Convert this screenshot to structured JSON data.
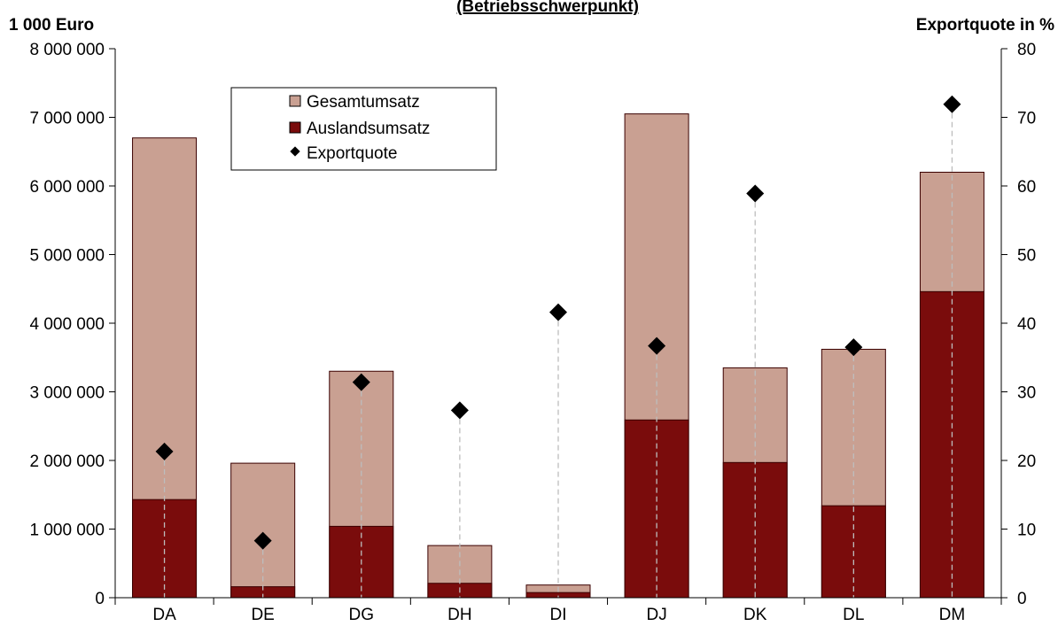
{
  "chart_data": {
    "type": "bar",
    "title": "(Betriebsschwerpunkt)",
    "ylabel_left": "1 000 Euro",
    "ylabel_right": "Exportquote in %",
    "categories": [
      "DA",
      "DE",
      "DG",
      "DH",
      "DI",
      "DJ",
      "DK",
      "DL",
      "DM"
    ],
    "ylim_left": [
      0,
      8000000
    ],
    "ylim_right": [
      0,
      80
    ],
    "left_ticks": [
      0,
      1000000,
      2000000,
      3000000,
      4000000,
      5000000,
      6000000,
      7000000,
      8000000
    ],
    "left_tick_labels": [
      "0",
      "1 000 000",
      "2 000 000",
      "3 000 000",
      "4 000 000",
      "5 000 000",
      "6 000 000",
      "7 000 000",
      "8 000 000"
    ],
    "right_ticks": [
      0,
      10,
      20,
      30,
      40,
      50,
      60,
      70,
      80
    ],
    "right_tick_labels": [
      "0",
      "10",
      "20",
      "30",
      "40",
      "50",
      "60",
      "70",
      "80"
    ],
    "series": [
      {
        "name": "Gesamtumsatz",
        "kind": "bar",
        "color": "#c9a092",
        "values": [
          6700000,
          1960000,
          3300000,
          760000,
          185000,
          7050000,
          3350000,
          3620000,
          6200000
        ]
      },
      {
        "name": "Auslandsumsatz",
        "kind": "bar",
        "color": "#7a0c0c",
        "values": [
          1430000,
          160000,
          1040000,
          210000,
          75000,
          2590000,
          1970000,
          1340000,
          4460000
        ]
      },
      {
        "name": "Exportquote",
        "kind": "marker",
        "axis": "right",
        "color": "#000000",
        "values": [
          21.3,
          8.3,
          31.4,
          27.3,
          41.6,
          36.7,
          58.9,
          36.5,
          71.9
        ]
      }
    ],
    "legend_position": "top-left-inside",
    "grid": false
  }
}
